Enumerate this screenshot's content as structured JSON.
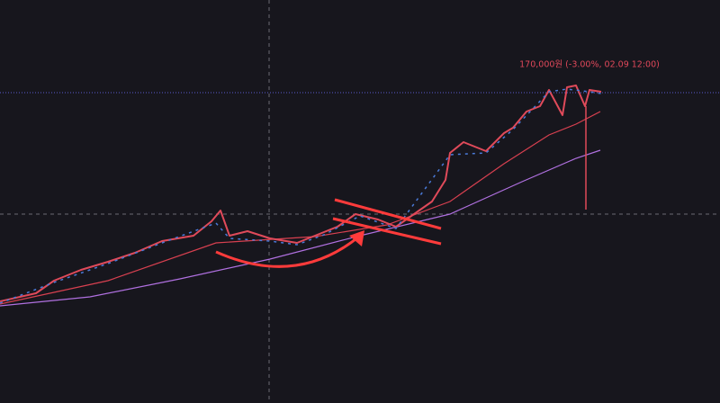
{
  "annotation": {
    "price_label": "170,000원 (-3.00%, 02.09 12:00)"
  }
}
